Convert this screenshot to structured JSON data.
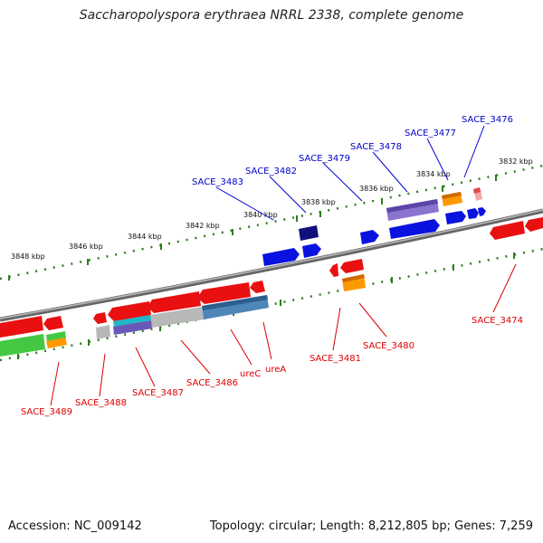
{
  "title": "Saccharopolyspora erythraea NRRL 2338, complete genome",
  "footer": {
    "accession": "Accession: NC_009142",
    "topology": "Topology: circular; Length: 8,212,805 bp; Genes: 7,259"
  },
  "colors": {
    "forward_label": "#0000cc",
    "reverse_label": "#dd0000",
    "backbone": "#888888",
    "ruler": "#2e7d1e"
  },
  "ruler_labels": [
    "3832 kbp",
    "3834 kbp",
    "3836 kbp",
    "3838 kbp",
    "3840 kbp",
    "3842 kbp",
    "3844 kbp",
    "3846 kbp",
    "3848 kbp"
  ],
  "forward_labels": [
    "SACE_3476",
    "SACE_3477",
    "SACE_3478",
    "SACE_3479",
    "SACE_3482",
    "SACE_3483"
  ],
  "reverse_labels": [
    "SACE_3474",
    "SACE_3480",
    "SACE_3481",
    "ureA",
    "ureC",
    "SACE_3486",
    "SACE_3487",
    "SACE_3488",
    "SACE_3489"
  ]
}
